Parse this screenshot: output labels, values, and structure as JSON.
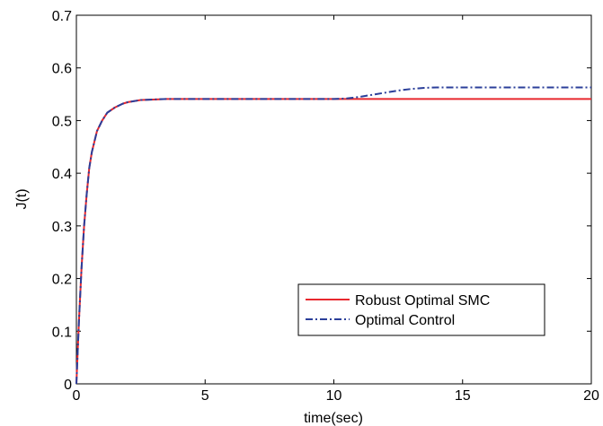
{
  "chart_data": {
    "type": "line",
    "xlabel": "time(sec)",
    "ylabel": "J(t)",
    "xlim": [
      0,
      20
    ],
    "ylim": [
      0,
      0.7
    ],
    "xticks": [
      0,
      5,
      10,
      15,
      20
    ],
    "yticks": [
      0,
      0.1,
      0.2,
      0.3,
      0.4,
      0.5,
      0.6,
      0.7
    ],
    "xtick_labels": [
      "0",
      "5",
      "10",
      "15",
      "20"
    ],
    "ytick_labels": [
      "0",
      "0.1",
      "0.2",
      "0.3",
      "0.4",
      "0.5",
      "0.6",
      "0.7"
    ],
    "grid": false,
    "legend_position": "lower-right",
    "series": [
      {
        "name": "Robust Optimal SMC",
        "color": "#e8282e",
        "style": "solid",
        "x": [
          0,
          0.1,
          0.2,
          0.3,
          0.4,
          0.5,
          0.6,
          0.8,
          1.0,
          1.2,
          1.5,
          1.8,
          2.0,
          2.5,
          3.0,
          3.5,
          5,
          10,
          15,
          20
        ],
        "y": [
          0.0,
          0.12,
          0.22,
          0.3,
          0.36,
          0.41,
          0.44,
          0.48,
          0.5,
          0.515,
          0.525,
          0.532,
          0.535,
          0.539,
          0.54,
          0.541,
          0.541,
          0.541,
          0.541,
          0.541
        ]
      },
      {
        "name": "Optimal Control",
        "color": "#2b3f9a",
        "style": "dashdot",
        "x": [
          0,
          0.1,
          0.2,
          0.3,
          0.4,
          0.5,
          0.6,
          0.8,
          1.0,
          1.2,
          1.5,
          1.8,
          2.0,
          2.5,
          3.0,
          3.5,
          5,
          10,
          10.5,
          11,
          11.5,
          12,
          12.5,
          13,
          13.5,
          14,
          15,
          20
        ],
        "y": [
          0.0,
          0.12,
          0.22,
          0.3,
          0.36,
          0.41,
          0.44,
          0.48,
          0.5,
          0.515,
          0.525,
          0.532,
          0.535,
          0.539,
          0.54,
          0.541,
          0.541,
          0.541,
          0.542,
          0.545,
          0.549,
          0.553,
          0.557,
          0.56,
          0.562,
          0.563,
          0.563,
          0.563
        ]
      }
    ]
  }
}
